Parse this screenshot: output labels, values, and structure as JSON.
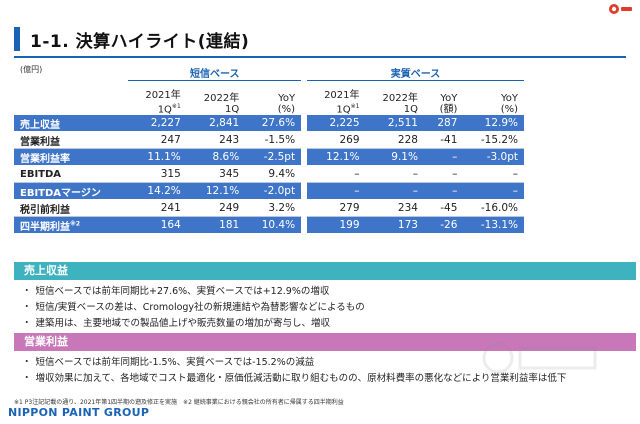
{
  "title": "1-1. 決算ハイライト(連結)",
  "unit": "(億円)",
  "groups": {
    "tanshin": "短信ベース",
    "jisshitsu": "実質ベース"
  },
  "headers": {
    "t2021": "2021年",
    "t2021q": "1Q",
    "t2021mark": "※1",
    "t2022": "2022年",
    "t2022q": "1Q",
    "tyoy": "YoY",
    "tyoy2": "(%)",
    "j2021": "2021年",
    "j2021q": "1Q",
    "j2021mark": "※1",
    "j2022": "2022年",
    "j2022q": "1Q",
    "jyoy": "YoY",
    "jyoy2": "(額)",
    "jyoyp": "YoY",
    "jyoyp2": "(%)"
  },
  "rows": [
    {
      "label": "売上収益",
      "note": "",
      "c": [
        "2,227",
        "2,841",
        "27.6%",
        "2,225",
        "2,511",
        "287",
        "12.9%"
      ]
    },
    {
      "label": "営業利益",
      "note": "",
      "c": [
        "247",
        "243",
        "-1.5%",
        "269",
        "228",
        "-41",
        "-15.2%"
      ]
    },
    {
      "label": "営業利益率",
      "note": "",
      "c": [
        "11.1%",
        "8.6%",
        "-2.5pt",
        "12.1%",
        "9.1%",
        "–",
        "-3.0pt"
      ]
    },
    {
      "label": "EBITDA",
      "note": "",
      "c": [
        "315",
        "345",
        "9.4%",
        "–",
        "–",
        "–",
        "–"
      ]
    },
    {
      "label": "EBITDAマージン",
      "note": "",
      "c": [
        "14.2%",
        "12.1%",
        "-2.0pt",
        "–",
        "–",
        "–",
        "–"
      ]
    },
    {
      "label": "税引前利益",
      "note": "",
      "c": [
        "241",
        "249",
        "3.2%",
        "279",
        "234",
        "-45",
        "-16.0%"
      ]
    },
    {
      "label": "四半期利益",
      "note": "※2",
      "c": [
        "164",
        "181",
        "10.4%",
        "199",
        "173",
        "-26",
        "-13.1%"
      ]
    }
  ],
  "sections": [
    {
      "title": "売上収益",
      "bullets": [
        "短信ベースでは前年同期比+27.6%、実質ベースでは+12.9%の増収",
        "短信/実質ベースの差は、Cromology社の新規連結や為替影響などによるもの",
        "建築用は、主要地域での製品値上げや販売数量の増加が寄与し、増収"
      ]
    },
    {
      "title": "営業利益",
      "bullets": [
        "短信ベースでは前年同期比-1.5%、実質ベースでは-15.2%の減益",
        "増収効果に加えて、各地域でコスト最適化・原価低減活動に取り組むものの、原材料費率の悪化などにより営業利益率は低下"
      ]
    }
  ],
  "footnote": "※1 P3注記記載の通り、2021年第1四半期の遡及修正を実施　※2 継続事業における親会社の所有者に帰属する四半期利益",
  "brand": "NIPPON PAINT GROUP",
  "colors": {
    "accent": "#1b63b4",
    "row_blue": "#3f75c9",
    "sec1": "#3fb2c0",
    "sec2": "#c878b9"
  }
}
